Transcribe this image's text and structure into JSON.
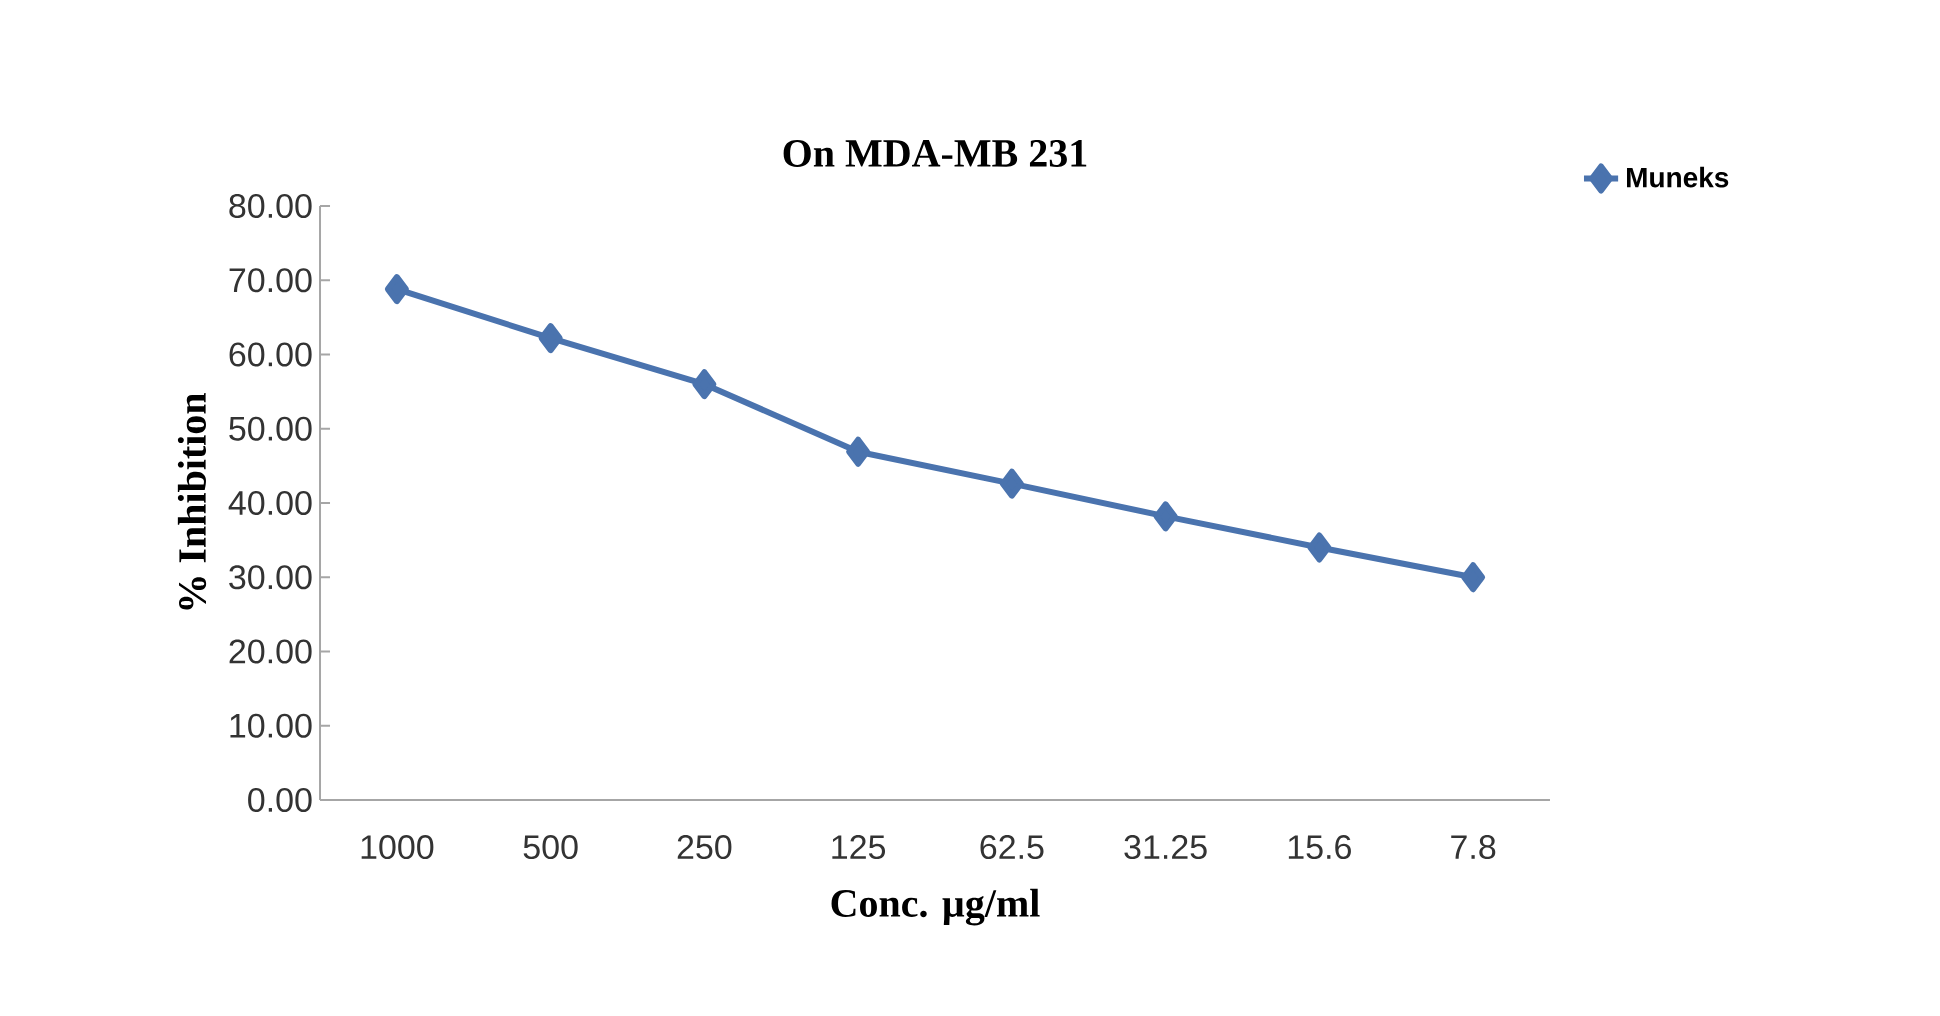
{
  "chart_data": {
    "type": "line",
    "title": "On MDA-MB 231",
    "xlabel": "Conc. µg/ml",
    "ylabel": "% Inhibition",
    "categories": [
      "1000",
      "500",
      "250",
      "125",
      "62.5",
      "31.25",
      "15.6",
      "7.8"
    ],
    "series": [
      {
        "name": "Muneks",
        "color": "#4a73ae",
        "values": [
          68.8,
          62.2,
          56.0,
          46.9,
          42.6,
          38.2,
          34.0,
          30.0
        ]
      }
    ],
    "ylim": [
      0,
      80
    ],
    "yticks": [
      {
        "value": 0,
        "label": "0.00"
      },
      {
        "value": 10,
        "label": "10.00"
      },
      {
        "value": 20,
        "label": "20.00"
      },
      {
        "value": 30,
        "label": "30.00"
      },
      {
        "value": 40,
        "label": "40.00"
      },
      {
        "value": 50,
        "label": "50.00"
      },
      {
        "value": 60,
        "label": "60.00"
      },
      {
        "value": 70,
        "label": "70.00"
      },
      {
        "value": 80,
        "label": "80.00"
      }
    ],
    "marker": "diamond",
    "line_style": "solid",
    "legend": "top right",
    "grid": false
  }
}
